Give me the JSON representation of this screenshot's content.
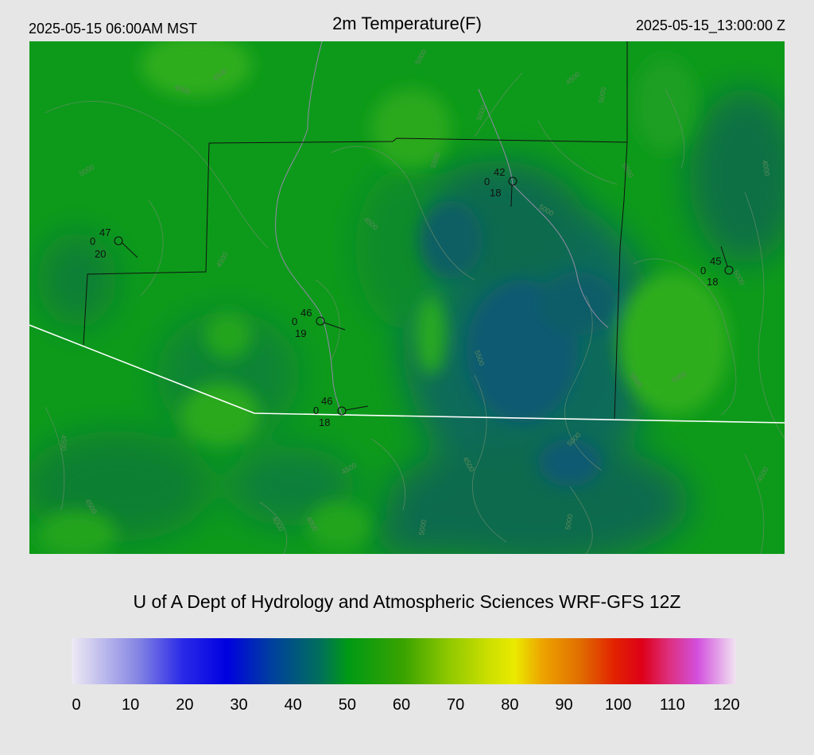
{
  "header": {
    "local_time": "2025-05-15 06:00AM MST",
    "title": "2m Temperature(F)",
    "utc_time": "2025-05-15_13:00:00 Z"
  },
  "credit": "U of A Dept of Hydrology and Atmospheric Sciences WRF-GFS 12Z",
  "colorbar": {
    "min": 0,
    "max": 120,
    "ticks": [
      "0",
      "10",
      "20",
      "30",
      "40",
      "50",
      "60",
      "70",
      "80",
      "90",
      "100",
      "110",
      "120"
    ],
    "stops": [
      {
        "value": 0,
        "color": "#eeeaf4"
      },
      {
        "value": 12,
        "color": "#8585e3"
      },
      {
        "value": 20,
        "color": "#2a2ae8"
      },
      {
        "value": 28,
        "color": "#0000e0"
      },
      {
        "value": 36,
        "color": "#003fa0"
      },
      {
        "value": 45,
        "color": "#00705a"
      },
      {
        "value": 50,
        "color": "#009a14"
      },
      {
        "value": 60,
        "color": "#3aa300"
      },
      {
        "value": 68,
        "color": "#8ec800"
      },
      {
        "value": 75,
        "color": "#c9de00"
      },
      {
        "value": 80,
        "color": "#eaea00"
      },
      {
        "value": 85,
        "color": "#eda400"
      },
      {
        "value": 92,
        "color": "#e06c00"
      },
      {
        "value": 98,
        "color": "#e22200"
      },
      {
        "value": 103,
        "color": "#dd0018"
      },
      {
        "value": 108,
        "color": "#dd3080"
      },
      {
        "value": 113,
        "color": "#d24fdd"
      },
      {
        "value": 120,
        "color": "#f1e4f1"
      }
    ]
  },
  "stations": [
    {
      "temp": "47",
      "wind": "0",
      "dew": "20"
    },
    {
      "temp": "42",
      "wind": "0",
      "dew": "18"
    },
    {
      "temp": "46",
      "wind": "0",
      "dew": "19"
    },
    {
      "temp": "46",
      "wind": "0",
      "dew": "18"
    },
    {
      "temp": "45",
      "wind": "0",
      "dew": "18"
    }
  ],
  "contour_labels": [
    "4000",
    "4500",
    "5000",
    "5500"
  ]
}
